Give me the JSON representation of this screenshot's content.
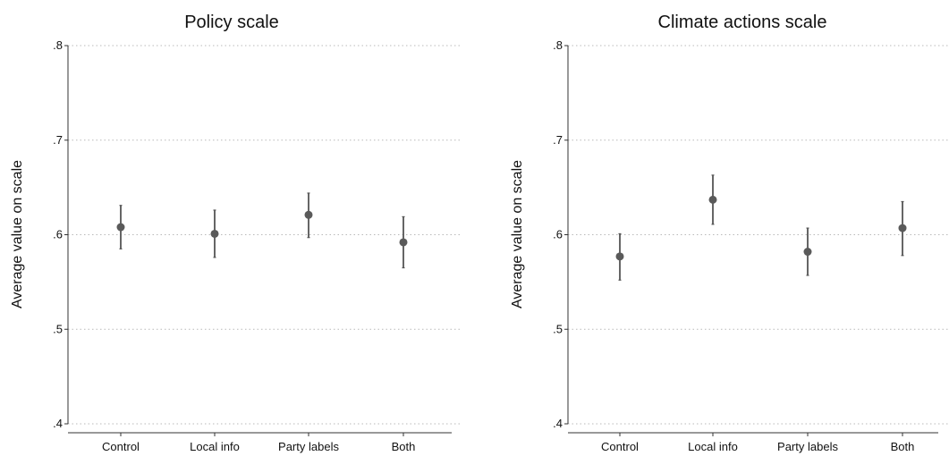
{
  "chart_data": [
    {
      "type": "scatter",
      "title": "Policy scale",
      "ylabel": "Average value on scale",
      "xlabel": "",
      "ylim": [
        0.4,
        0.8
      ],
      "yticks": [
        ".4",
        ".5",
        ".6",
        ".7",
        ".8"
      ],
      "ytick_values": [
        0.4,
        0.5,
        0.6,
        0.7,
        0.8
      ],
      "grid": true,
      "categories": [
        "Control",
        "Local info",
        "Party labels",
        "Both"
      ],
      "values": [
        0.608,
        0.601,
        0.621,
        0.592
      ],
      "ci_low": [
        0.585,
        0.576,
        0.597,
        0.565
      ],
      "ci_high": [
        0.631,
        0.626,
        0.644,
        0.619
      ]
    },
    {
      "type": "scatter",
      "title": "Climate actions scale",
      "ylabel": "Average value on scale",
      "xlabel": "",
      "ylim": [
        0.4,
        0.8
      ],
      "yticks": [
        ".4",
        ".5",
        ".6",
        ".7",
        ".8"
      ],
      "ytick_values": [
        0.4,
        0.5,
        0.6,
        0.7,
        0.8
      ],
      "grid": true,
      "categories": [
        "Control",
        "Local info",
        "Party labels",
        "Both"
      ],
      "values": [
        0.577,
        0.637,
        0.582,
        0.607
      ],
      "ci_low": [
        0.552,
        0.611,
        0.557,
        0.578
      ],
      "ci_high": [
        0.601,
        0.663,
        0.607,
        0.635
      ]
    }
  ]
}
